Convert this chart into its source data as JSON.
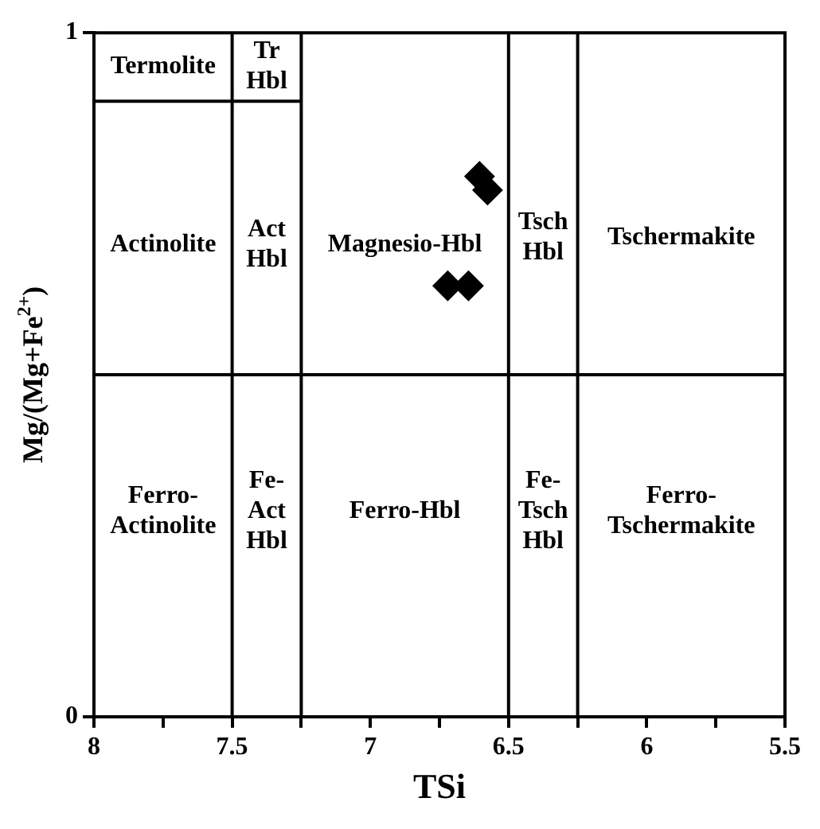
{
  "chart_data": {
    "type": "scatter",
    "xlabel": "TSi",
    "ylabel": "Mg/(Mg+Fe$^{2+}$)",
    "xlim": [
      8,
      5.5
    ],
    "xticks": [
      8,
      {
        "value": 7.75,
        "label": null
      },
      7.5,
      {
        "value": 7.25,
        "label": null
      },
      7,
      {
        "value": 6.75,
        "label": null
      },
      6.5,
      {
        "value": 6.25,
        "label": null
      },
      6,
      {
        "value": 5.75,
        "label": null
      },
      5.5
    ],
    "ylim": [
      0,
      1
    ],
    "yticks": [
      0,
      1
    ],
    "grid": false,
    "legend": false,
    "line_style": "solid",
    "series": [
      {
        "marker": "diamond",
        "color": "#000000",
        "x": [
          6.605,
          6.576,
          6.72,
          6.645
        ],
        "values": [
          0.79,
          0.77,
          0.63,
          0.63
        ]
      },
      {
        "type": "line",
        "color": "#000000",
        "x": [
          7.5,
          7.5
        ],
        "values": [
          0,
          1
        ]
      },
      {
        "type": "line",
        "color": "#000000",
        "x": [
          7.25,
          7.25
        ],
        "values": [
          0,
          1
        ]
      },
      {
        "type": "line",
        "color": "#000000",
        "x": [
          6.5,
          6.5
        ],
        "values": [
          0,
          1
        ]
      },
      {
        "type": "line",
        "color": "#000000",
        "x": [
          6.25,
          6.25
        ],
        "values": [
          0,
          1
        ]
      },
      {
        "type": "line",
        "color": "#000000",
        "x": [
          8,
          5.5
        ],
        "values": [
          0.5,
          0.5
        ]
      },
      {
        "type": "line",
        "color": "#000000",
        "x": [
          8,
          7.25
        ],
        "values": [
          0.9,
          0.9
        ]
      }
    ],
    "annotations": [
      "Termolite",
      "Tr\nHbl",
      "Actinolite",
      "Act\nHbl",
      "Magnesio-Hbl",
      "Tsch\nHbl",
      "Tschermakite",
      "Ferro-\nActinolite",
      "Fe-\nAct\nHbl",
      "Ferro-Hbl",
      "Fe-\nTsch\nHbl",
      "Ferro-\nTschermakite"
    ]
  }
}
